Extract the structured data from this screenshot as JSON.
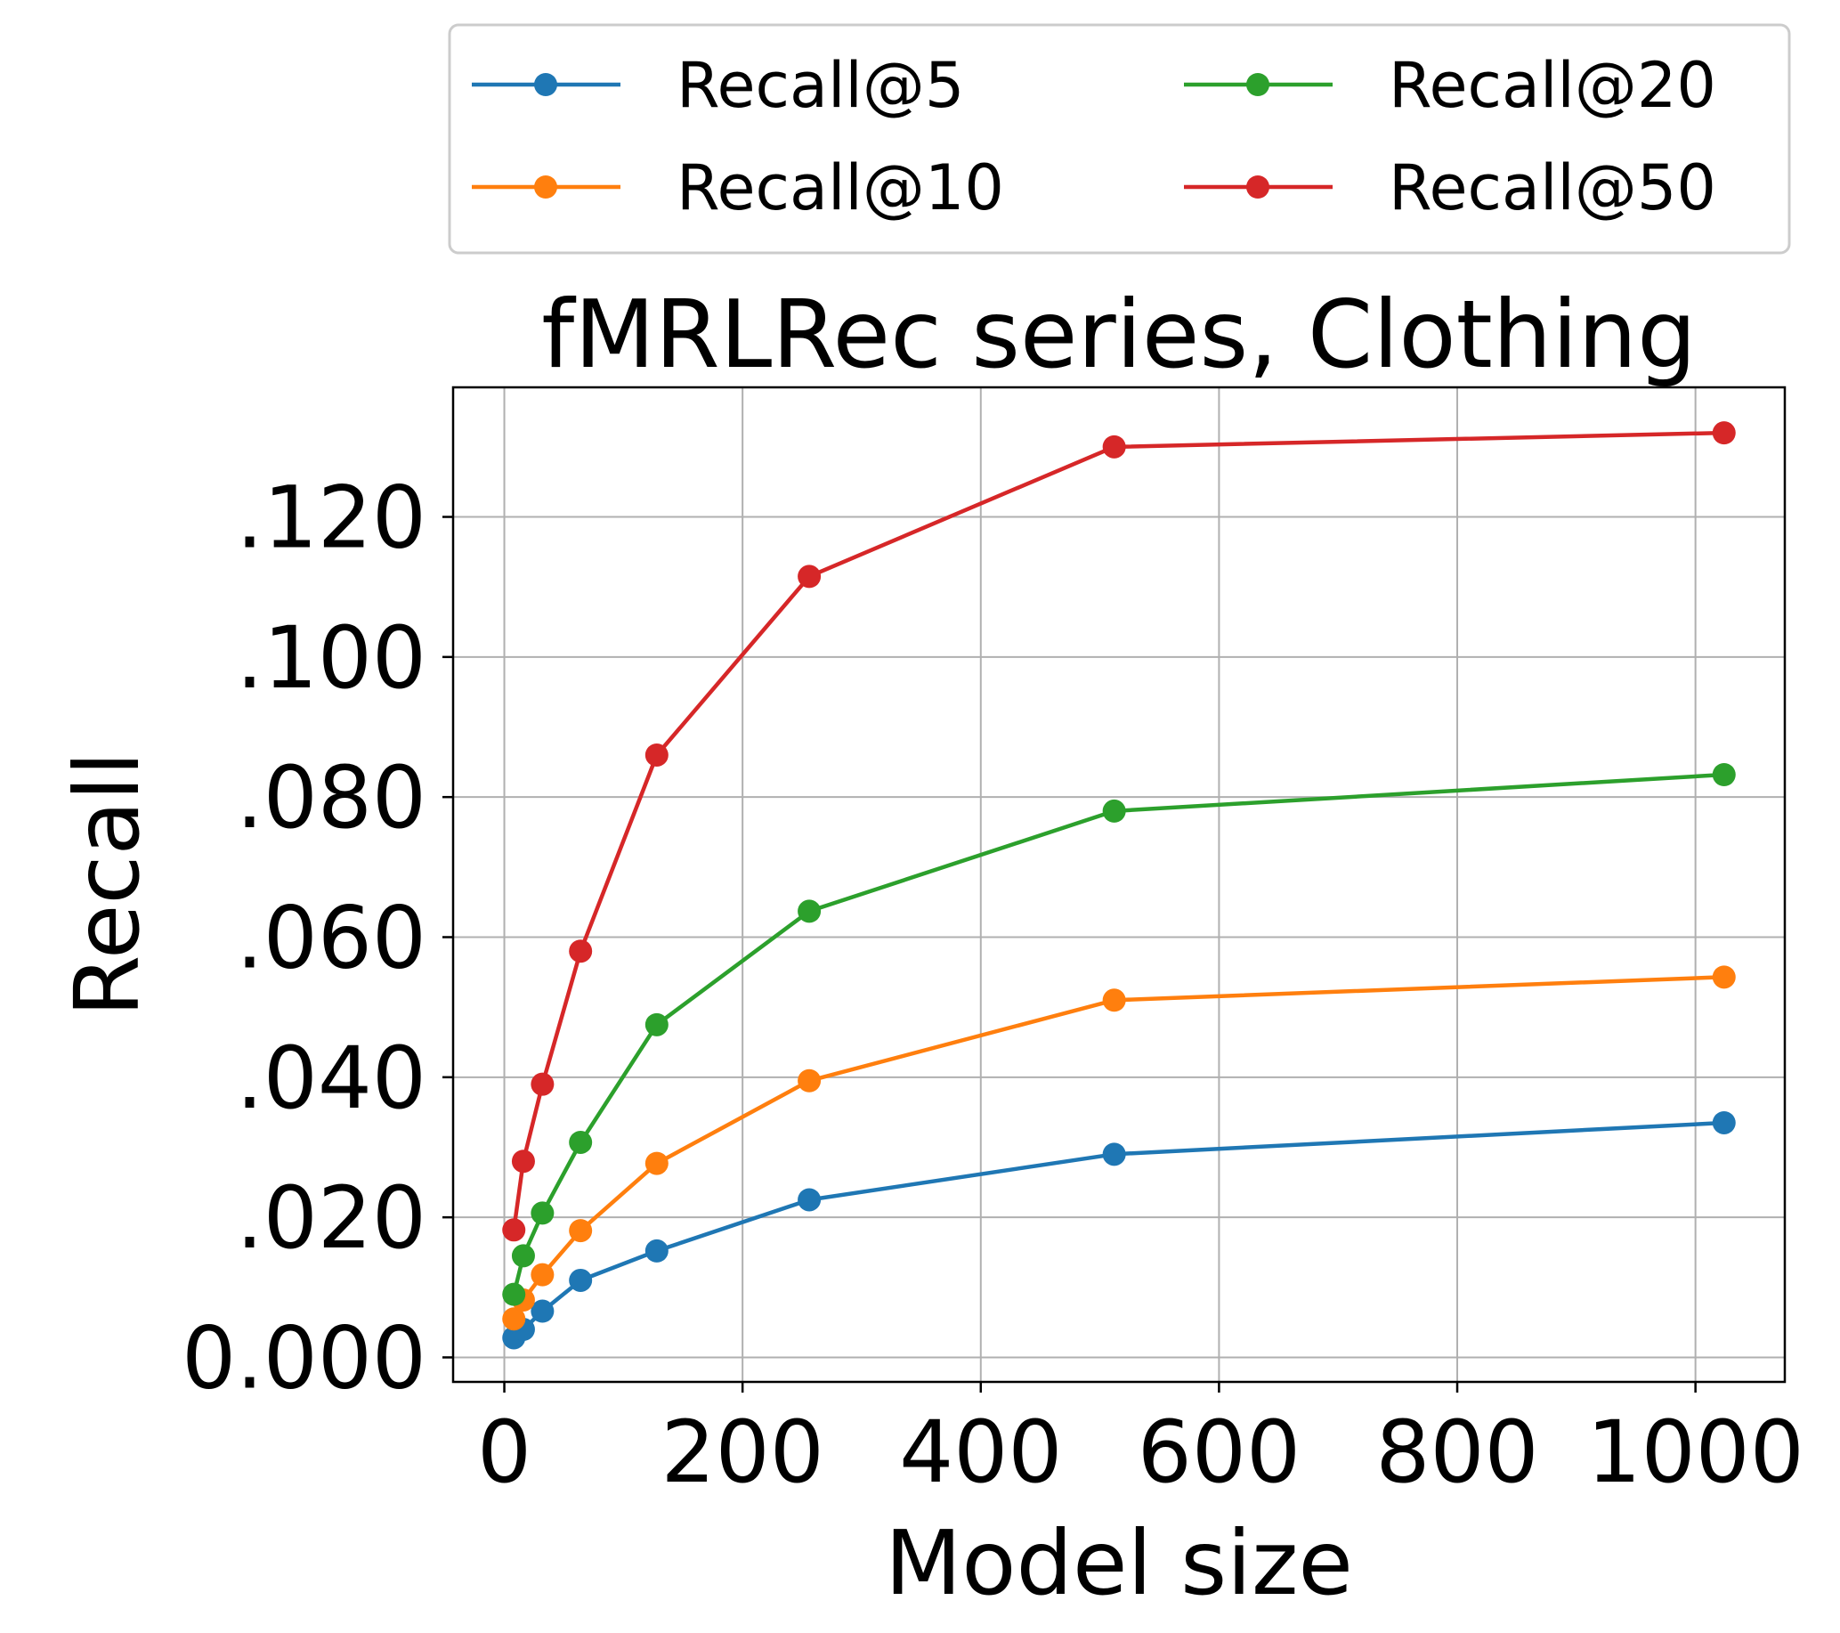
{
  "chart_data": {
    "type": "line",
    "title": "fMRLRec series, Clothing",
    "xlabel": "Model size",
    "ylabel": "Recall",
    "xlim": [
      -43,
      1075
    ],
    "ylim": [
      -0.0035,
      0.1385
    ],
    "x_ticks": [
      0,
      200,
      400,
      600,
      800,
      1000
    ],
    "x_tick_labels": [
      "0",
      "200",
      "400",
      "600",
      "800",
      "1000"
    ],
    "y_ticks": [
      0.0,
      0.02,
      0.04,
      0.06,
      0.08,
      0.1,
      0.12
    ],
    "y_tick_labels": [
      "0.000",
      ".020",
      ".040",
      ".060",
      ".080",
      ".100",
      ".120"
    ],
    "grid": true,
    "legend_position": "above plot, two columns",
    "x": [
      8,
      16,
      32,
      64,
      128,
      256,
      512,
      1024
    ],
    "series": [
      {
        "name": "Recall@5",
        "color": "#1f77b4",
        "values": [
          0.0028,
          0.004,
          0.0066,
          0.011,
          0.0152,
          0.0225,
          0.029,
          0.0335
        ]
      },
      {
        "name": "Recall@10",
        "color": "#ff7f0e",
        "values": [
          0.0055,
          0.0082,
          0.0118,
          0.0181,
          0.0277,
          0.0395,
          0.051,
          0.0543
        ]
      },
      {
        "name": "Recall@20",
        "color": "#2ca02c",
        "values": [
          0.009,
          0.0145,
          0.0206,
          0.0307,
          0.0475,
          0.0637,
          0.078,
          0.0832
        ]
      },
      {
        "name": "Recall@50",
        "color": "#d62728",
        "values": [
          0.0182,
          0.028,
          0.039,
          0.058,
          0.086,
          0.1115,
          0.13,
          0.132
        ]
      }
    ]
  }
}
